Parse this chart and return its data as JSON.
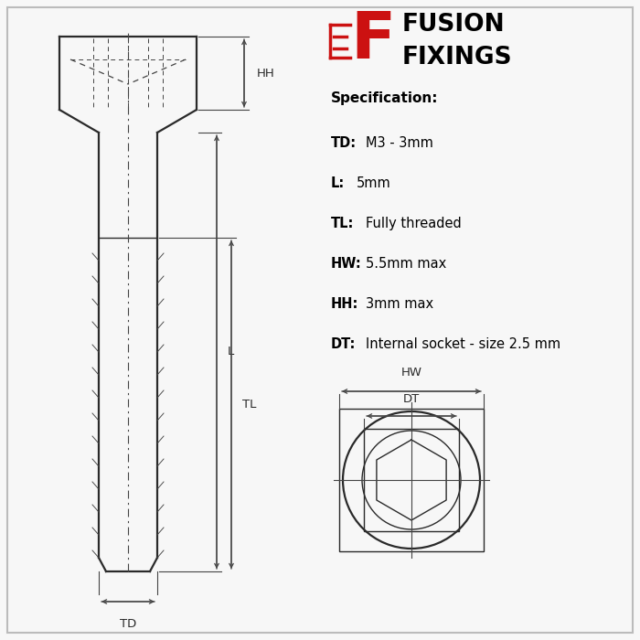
{
  "bg_color": "#f7f7f7",
  "line_color": "#2a2a2a",
  "dim_color": "#444444",
  "red_color": "#cc1111",
  "spec_title": "Specification:",
  "spec_items": [
    [
      "TD:",
      "M3 - 3mm"
    ],
    [
      "L:",
      "5mm"
    ],
    [
      "TL:",
      "Fully threaded"
    ],
    [
      "HW:",
      "5.5mm max"
    ],
    [
      "HH:",
      "3mm max"
    ],
    [
      "DT:",
      "Internal socket - size 2.5 mm"
    ]
  ]
}
